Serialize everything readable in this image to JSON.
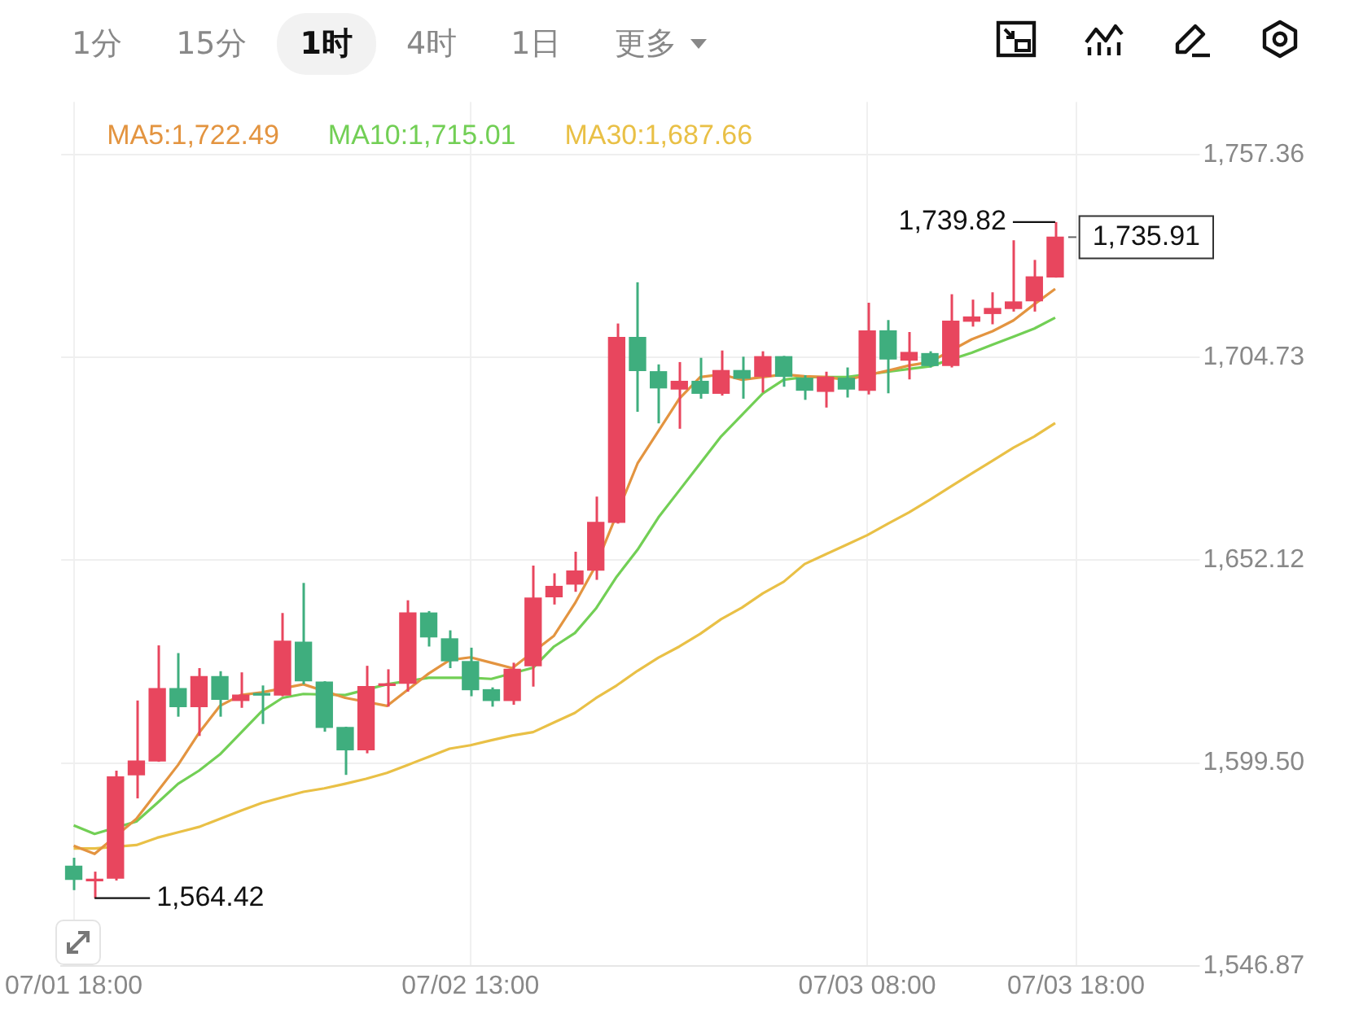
{
  "chart_data": {
    "type": "candlestick",
    "annotations": [
      "1分",
      "15分",
      "1时",
      "4时",
      "1日",
      "更多",
      {
        "text": "1,739.82",
        "x": "--07-03T17:00",
        "y": 1739.82
      },
      {
        "text": "1,564.42",
        "x": "--07-01T19:00",
        "y": 1564.42
      }
    ],
    "x": [
      "--07-01T18:00",
      "--07-01T19:00",
      "--07-01T20:00",
      "--07-01T21:00",
      "--07-01T22:00",
      "--07-01T23:00",
      "--07-02T00:00",
      "--07-02T01:00",
      "--07-02T02:00",
      "--07-02T03:00",
      "--07-02T04:00",
      "--07-02T05:00",
      "--07-02T06:00",
      "--07-02T07:00",
      "--07-02T08:00",
      "--07-02T09:00",
      "--07-02T10:00",
      "--07-02T11:00",
      "--07-02T12:00",
      "--07-02T13:00",
      "--07-02T14:00",
      "--07-02T15:00",
      "--07-02T16:00",
      "--07-02T17:00",
      "--07-02T18:00",
      "--07-02T19:00",
      "--07-02T20:00",
      "--07-02T21:00",
      "--07-02T22:00",
      "--07-02T23:00",
      "--07-03T00:00",
      "--07-03T01:00",
      "--07-03T02:00",
      "--07-03T03:00",
      "--07-03T04:00",
      "--07-03T05:00",
      "--07-03T06:00",
      "--07-03T07:00",
      "--07-03T08:00",
      "--07-03T09:00",
      "--07-03T10:00",
      "--07-03T11:00",
      "--07-03T12:00",
      "--07-03T13:00",
      "--07-03T14:00",
      "--07-03T15:00",
      "--07-03T16:00",
      "--07-03T17:00"
    ],
    "ohlc": [
      [
        1572.7,
        1574.9,
        1566.5,
        1569.3
      ],
      [
        1568.9,
        1571.3,
        1564.42,
        1569.3
      ],
      [
        1569.6,
        1597.5,
        1569.0,
        1595.9
      ],
      [
        1596.4,
        1615.7,
        1590.3,
        1600.0
      ],
      [
        1600.0,
        1630.0,
        1599.8,
        1618.8
      ],
      [
        1618.8,
        1628.0,
        1611.5,
        1614.1
      ],
      [
        1614.1,
        1624.1,
        1606.5,
        1621.9
      ],
      [
        1621.9,
        1623.3,
        1611.5,
        1616.0
      ],
      [
        1615.7,
        1623.0,
        1613.8,
        1617.1
      ],
      [
        1617.4,
        1619.6,
        1609.6,
        1617.1
      ],
      [
        1617.1,
        1638.4,
        1616.8,
        1631.1
      ],
      [
        1630.8,
        1646.2,
        1619.9,
        1620.8
      ],
      [
        1620.5,
        1620.7,
        1607.6,
        1608.7
      ],
      [
        1608.7,
        1608.9,
        1596.4,
        1602.9
      ],
      [
        1602.9,
        1624.7,
        1602.0,
        1619.3
      ],
      [
        1619.6,
        1623.8,
        1614.1,
        1619.9
      ],
      [
        1620.2,
        1641.7,
        1618.0,
        1638.4
      ],
      [
        1638.4,
        1638.9,
        1629.7,
        1632.2
      ],
      [
        1631.7,
        1633.9,
        1624.1,
        1626.0
      ],
      [
        1625.8,
        1629.4,
        1616.8,
        1618.5
      ],
      [
        1618.5,
        1619.1,
        1614.1,
        1615.7
      ],
      [
        1615.7,
        1625.5,
        1614.6,
        1623.8
      ],
      [
        1624.7,
        1650.7,
        1619.3,
        1642.3
      ],
      [
        1642.6,
        1648.7,
        1640.6,
        1645.3
      ],
      [
        1645.9,
        1654.3,
        1643.9,
        1649.3
      ],
      [
        1649.5,
        1668.6,
        1647.0,
        1661.9
      ],
      [
        1661.9,
        1713.5,
        1661.6,
        1709.9
      ],
      [
        1709.9,
        1724.2,
        1690.6,
        1701.3
      ],
      [
        1701.0,
        1702.9,
        1687.6,
        1696.8
      ],
      [
        1696.5,
        1703.5,
        1686.2,
        1698.5
      ],
      [
        1698.5,
        1704.6,
        1694.0,
        1695.4
      ],
      [
        1695.4,
        1706.5,
        1694.8,
        1701.3
      ],
      [
        1701.3,
        1704.9,
        1694.0,
        1699.3
      ],
      [
        1699.8,
        1706.3,
        1695.6,
        1704.9
      ],
      [
        1704.9,
        1705.1,
        1697.1,
        1699.8
      ],
      [
        1699.3,
        1700.1,
        1693.7,
        1696.2
      ],
      [
        1695.9,
        1701.0,
        1691.7,
        1699.6
      ],
      [
        1699.3,
        1702.1,
        1694.3,
        1696.5
      ],
      [
        1696.2,
        1718.9,
        1695.1,
        1711.6
      ],
      [
        1711.6,
        1714.4,
        1695.4,
        1704.3
      ],
      [
        1704.0,
        1711.3,
        1699.0,
        1706.0
      ],
      [
        1705.7,
        1706.3,
        1702.1,
        1702.6
      ],
      [
        1702.6,
        1721.1,
        1702.1,
        1714.1
      ],
      [
        1714.1,
        1719.7,
        1712.7,
        1715.2
      ],
      [
        1716.1,
        1721.6,
        1713.3,
        1717.4
      ],
      [
        1717.4,
        1735.1,
        1716.6,
        1719.1
      ],
      [
        1719.4,
        1730.0,
        1716.6,
        1725.6
      ],
      [
        1725.6,
        1739.82,
        1725.4,
        1735.91
      ]
    ],
    "colors": [
      "#3fae7e",
      "#e8465e",
      "#e8465e",
      "#e8465e",
      "#e8465e",
      "#3fae7e",
      "#e8465e",
      "#3fae7e",
      "#e8465e",
      "#3fae7e",
      "#e8465e",
      "#3fae7e",
      "#3fae7e",
      "#3fae7e",
      "#e8465e",
      "#e8465e",
      "#e8465e",
      "#3fae7e",
      "#3fae7e",
      "#3fae7e",
      "#3fae7e",
      "#e8465e",
      "#e8465e",
      "#e8465e",
      "#e8465e",
      "#e8465e",
      "#e8465e",
      "#3fae7e",
      "#3fae7e",
      "#e8465e",
      "#3fae7e",
      "#e8465e",
      "#3fae7e",
      "#e8465e",
      "#3fae7e",
      "#3fae7e",
      "#e8465e",
      "#3fae7e",
      "#e8465e",
      "#3fae7e",
      "#e8465e",
      "#3fae7e",
      "#e8465e",
      "#e8465e",
      "#e8465e",
      "#e8465e",
      "#e8465e",
      "#e8465e"
    ],
    "series": [
      {
        "type": "line",
        "name": "MA5:1,722.49",
        "color": "#e39440",
        "values": [
          1578.0,
          1575.9,
          null,
          1585.0,
          1592.0,
          1599.0,
          1607.3,
          1614.3,
          1617.1,
          1617.8,
          null,
          1619.9,
          null,
          1616.4,
          null,
          1614.3,
          1618.5,
          1622.7,
          1626.2,
          1626.9,
          1625.5,
          1624.1,
          null,
          1632.5,
          1640.9,
          1650.7,
          null,
          1677.2,
          1685.6,
          1694.0,
          1699.6,
          1700.3,
          1698.9,
          1699.6,
          1700.3,
          1699.8,
          1699.6,
          1698.9,
          null,
          1701.3,
          1702.6,
          1703.5,
          null,
          1709.4,
          1711.5,
          1714.3,
          1718.5,
          1722.49
        ]
      },
      {
        "type": "line",
        "name": "MA10:1,715.01",
        "color": "#72cf55",
        "values": [
          1583.3,
          1581.1,
          null,
          1584.3,
          1589.1,
          1594.1,
          1597.5,
          1601.7,
          1607.3,
          1612.9,
          1616.4,
          1617.4,
          null,
          1617.1,
          null,
          1619.9,
          null,
          1621.6,
          1621.6,
          1621.6,
          1621.3,
          null,
          1624.2,
          1629.7,
          1633.2,
          1639.5,
          1647.8,
          1654.8,
          1663.2,
          1670.2,
          1677.2,
          1684.2,
          1689.8,
          1695.4,
          1698.9,
          1699.6,
          1699.6,
          1699.6,
          null,
          1701.0,
          1701.7,
          1702.4,
          null,
          1705.9,
          1708.0,
          1710.1,
          1712.2,
          1715.01
        ]
      },
      {
        "type": "line",
        "name": "MA30:1,687.66",
        "color": "#e9c046",
        "values": [
          1577.3,
          1577.3,
          null,
          1578.2,
          1580.1,
          1581.5,
          1582.9,
          1585.0,
          1587.1,
          1589.1,
          1590.6,
          1592.0,
          1592.9,
          1594.1,
          1595.4,
          1596.9,
          1599.0,
          1601.1,
          1603.2,
          1604.1,
          1605.4,
          1606.6,
          1607.5,
          1610.0,
          1612.5,
          1616.3,
          1619.6,
          1623.4,
          1626.8,
          1629.7,
          1633.0,
          1636.8,
          1639.8,
          1643.5,
          1646.5,
          1651.1,
          1653.6,
          1656.1,
          1658.6,
          1661.6,
          1664.5,
          1667.8,
          1671.2,
          1674.6,
          1677.9,
          1681.3,
          1684.2,
          1687.66
        ]
      }
    ],
    "ref_lines": [
      {
        "axis": "y",
        "value": 1735.91,
        "label": "1,735.91",
        "line_style": "dashed"
      }
    ],
    "xlim": [
      "--07-01T17:24",
      "--07-04T02:45"
    ],
    "xticks": [
      {
        "value": "--07-01T18:00",
        "label": "07/01 18:00"
      },
      {
        "value": "--07-02T13:00",
        "label": "07/02 13:00"
      },
      {
        "value": "--07-03T08:00",
        "label": "07/03 08:00"
      },
      {
        "value": "--07-03T18:00",
        "label": "07/03 18:00"
      }
    ],
    "ylim": [
      1546.87,
      1771
    ],
    "yticks": [
      {
        "value": 1546.87,
        "label": "1,546.87"
      },
      {
        "value": 1599.5,
        "label": "1,599.50"
      },
      {
        "value": 1652.12,
        "label": "1,652.12"
      },
      {
        "value": 1704.73,
        "label": "1,704.73"
      },
      {
        "value": 1757.36,
        "label": "1,757.36"
      }
    ],
    "grid": true,
    "legend": "top left"
  }
}
